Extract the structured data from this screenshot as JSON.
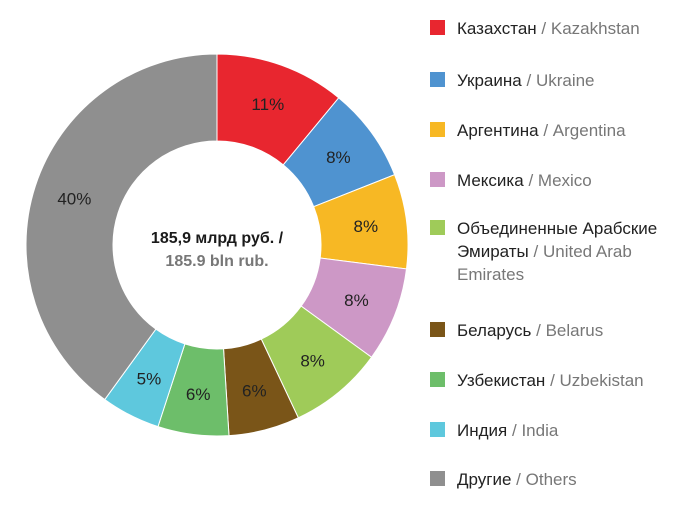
{
  "chart_data": {
    "type": "pie",
    "donut": true,
    "start": "top",
    "direction": "clockwise",
    "center_label": {
      "line1": "185,9 млрд руб. /",
      "line2": "185.9 bln rub."
    },
    "slices": [
      {
        "label_ru": "Казахстан",
        "label_en": "Kazakhstan",
        "value": 11,
        "display": "11%",
        "color": "#e8262f"
      },
      {
        "label_ru": "Украина",
        "label_en": "Ukraine",
        "value": 8,
        "display": "8%",
        "color": "#4f93d0"
      },
      {
        "label_ru": "Аргентина",
        "label_en": "Argentina",
        "value": 8,
        "display": "8%",
        "color": "#f7b824"
      },
      {
        "label_ru": "Мексика",
        "label_en": "Mexico",
        "value": 8,
        "display": "8%",
        "color": "#cd98c6"
      },
      {
        "label_ru": "Объединенные Арабские Эмираты",
        "label_en": "United Arab Emirates",
        "value": 8,
        "display": "8%",
        "color": "#9fcb59"
      },
      {
        "label_ru": "Беларусь",
        "label_en": "Belarus",
        "value": 6,
        "display": "6%",
        "color": "#7a5518"
      },
      {
        "label_ru": "Узбекистан",
        "label_en": "Uzbekistan",
        "value": 6,
        "display": "6%",
        "color": "#6dbe6a"
      },
      {
        "label_ru": "Индия",
        "label_en": "India",
        "value": 5,
        "display": "5%",
        "color": "#5ec8dd"
      },
      {
        "label_ru": "Другие",
        "label_en": "Others",
        "value": 40,
        "display": "40%",
        "color": "#8f8f8f"
      }
    ],
    "legend_placement": "right",
    "separator": "/"
  }
}
